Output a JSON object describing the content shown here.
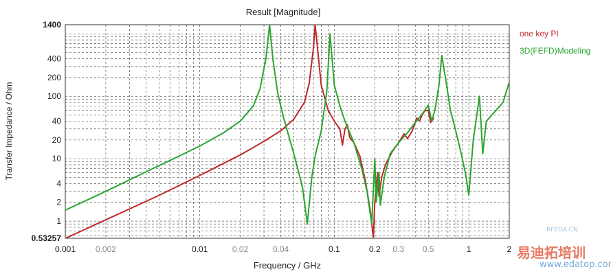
{
  "chart_data": {
    "type": "line",
    "title": "Result [Magnitude]",
    "xlabel": "Frequency / GHz",
    "ylabel": "Transfer Impedance / Ohm",
    "xscale": "log",
    "yscale": "log",
    "xlim": [
      0.001,
      2
    ],
    "ylim": [
      0.53257,
      1400
    ],
    "grid": true,
    "legend_placement": "right",
    "x_ticks": [
      {
        "value": 0.001,
        "label": "0.001"
      },
      {
        "value": 0.002,
        "label": "0.002"
      },
      {
        "value": 0.01,
        "label": "0.01"
      },
      {
        "value": 0.02,
        "label": "0.02"
      },
      {
        "value": 0.04,
        "label": "0.04"
      },
      {
        "value": 0.1,
        "label": "0.1"
      },
      {
        "value": 0.2,
        "label": "0.2"
      },
      {
        "value": 0.3,
        "label": "0.3"
      },
      {
        "value": 0.5,
        "label": "0.5"
      },
      {
        "value": 1,
        "label": "1"
      },
      {
        "value": 2,
        "label": "2"
      }
    ],
    "y_ticks": [
      {
        "value": 0.53257,
        "label": "0.53257"
      },
      {
        "value": 1,
        "label": "1"
      },
      {
        "value": 2,
        "label": "2"
      },
      {
        "value": 4,
        "label": "4"
      },
      {
        "value": 10,
        "label": "10"
      },
      {
        "value": 20,
        "label": "20"
      },
      {
        "value": 40,
        "label": "40"
      },
      {
        "value": 100,
        "label": "100"
      },
      {
        "value": 200,
        "label": "200"
      },
      {
        "value": 400,
        "label": "400"
      },
      {
        "value": 1400,
        "label": "1400"
      }
    ],
    "series": [
      {
        "name": "one key PI",
        "color": "#c0282d",
        "points": [
          [
            0.001,
            0.53
          ],
          [
            0.002,
            1.05
          ],
          [
            0.005,
            2.6
          ],
          [
            0.01,
            5.4
          ],
          [
            0.02,
            11.5
          ],
          [
            0.03,
            19
          ],
          [
            0.04,
            28
          ],
          [
            0.05,
            43
          ],
          [
            0.06,
            80
          ],
          [
            0.065,
            160
          ],
          [
            0.07,
            600
          ],
          [
            0.072,
            1400
          ],
          [
            0.075,
            600
          ],
          [
            0.08,
            150
          ],
          [
            0.09,
            60
          ],
          [
            0.1,
            40
          ],
          [
            0.11,
            30
          ],
          [
            0.115,
            16.5
          ],
          [
            0.12,
            30
          ],
          [
            0.125,
            35
          ],
          [
            0.13,
            22
          ],
          [
            0.14,
            18
          ],
          [
            0.155,
            11
          ],
          [
            0.17,
            4.5
          ],
          [
            0.185,
            1.5
          ],
          [
            0.195,
            0.55
          ],
          [
            0.2,
            2
          ],
          [
            0.21,
            6
          ],
          [
            0.215,
            2.5
          ],
          [
            0.225,
            5
          ],
          [
            0.24,
            8
          ],
          [
            0.27,
            13
          ],
          [
            0.3,
            18
          ],
          [
            0.33,
            25
          ],
          [
            0.35,
            21
          ],
          [
            0.38,
            28
          ],
          [
            0.41,
            45
          ],
          [
            0.43,
            40
          ],
          [
            0.45,
            50
          ],
          [
            0.47,
            58
          ],
          [
            0.5,
            60
          ],
          [
            0.52,
            38
          ],
          [
            0.55,
            45
          ]
        ]
      },
      {
        "name": "3D(FEFD)Modeling",
        "color": "#2aa52e",
        "points": [
          [
            0.001,
            1.5
          ],
          [
            0.002,
            3.0
          ],
          [
            0.004,
            6.2
          ],
          [
            0.007,
            11
          ],
          [
            0.01,
            16
          ],
          [
            0.015,
            26
          ],
          [
            0.02,
            40
          ],
          [
            0.025,
            70
          ],
          [
            0.028,
            130
          ],
          [
            0.031,
            400
          ],
          [
            0.033,
            1400
          ],
          [
            0.035,
            380
          ],
          [
            0.038,
            110
          ],
          [
            0.042,
            45
          ],
          [
            0.05,
            12
          ],
          [
            0.058,
            3.5
          ],
          [
            0.063,
            0.9
          ],
          [
            0.068,
            5
          ],
          [
            0.072,
            11
          ],
          [
            0.08,
            28
          ],
          [
            0.088,
            120
          ],
          [
            0.093,
            1000
          ],
          [
            0.1,
            150
          ],
          [
            0.11,
            70
          ],
          [
            0.12,
            40
          ],
          [
            0.14,
            18
          ],
          [
            0.16,
            7
          ],
          [
            0.175,
            3
          ],
          [
            0.19,
            0.9
          ],
          [
            0.2,
            10
          ],
          [
            0.205,
            2
          ],
          [
            0.215,
            6
          ],
          [
            0.22,
            1.8
          ],
          [
            0.235,
            5
          ],
          [
            0.26,
            12
          ],
          [
            0.3,
            18
          ],
          [
            0.35,
            26
          ],
          [
            0.4,
            38
          ],
          [
            0.45,
            52
          ],
          [
            0.5,
            72
          ],
          [
            0.53,
            40
          ],
          [
            0.56,
            60
          ],
          [
            0.6,
            150
          ],
          [
            0.63,
            450
          ],
          [
            0.67,
            200
          ],
          [
            0.73,
            60
          ],
          [
            0.8,
            28
          ],
          [
            0.88,
            12
          ],
          [
            0.95,
            5.5
          ],
          [
            1.0,
            2.6
          ],
          [
            1.08,
            20
          ],
          [
            1.2,
            100
          ],
          [
            1.27,
            12
          ],
          [
            1.35,
            40
          ],
          [
            1.6,
            60
          ],
          [
            1.8,
            80
          ],
          [
            2.0,
            170
          ]
        ]
      }
    ]
  },
  "watermark": {
    "site": "www.edatop.com",
    "brand": "易迪拓培训",
    "sub": "RFEDA.CN"
  }
}
